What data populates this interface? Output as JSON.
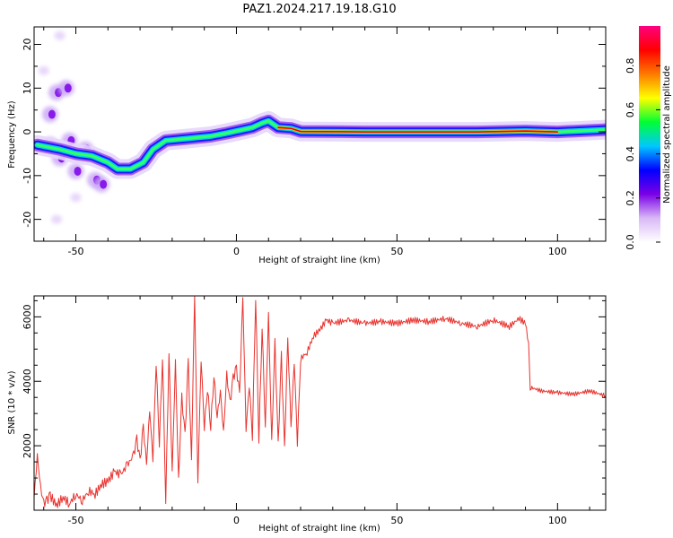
{
  "title": "PAZ1.2024.217.19.18.G10",
  "chart_data": [
    {
      "type": "heatmap",
      "xlabel": "Height of straight line (km)",
      "ylabel": "Frequency (Hz)",
      "xlim": [
        -63,
        115
      ],
      "ylim": [
        -25,
        24
      ],
      "xticks": [
        -50,
        0,
        50,
        100
      ],
      "yticks": [
        -20,
        -10,
        0,
        10,
        20
      ],
      "ridge": [
        {
          "x": -62,
          "y": -3
        },
        {
          "x": -55,
          "y": -4
        },
        {
          "x": -50,
          "y": -5
        },
        {
          "x": -45,
          "y": -5.5
        },
        {
          "x": -40,
          "y": -7
        },
        {
          "x": -37,
          "y": -8.5
        },
        {
          "x": -33,
          "y": -8.5
        },
        {
          "x": -29,
          "y": -7
        },
        {
          "x": -26,
          "y": -4
        },
        {
          "x": -22,
          "y": -2
        },
        {
          "x": -15,
          "y": -1.5
        },
        {
          "x": -8,
          "y": -1
        },
        {
          "x": -3,
          "y": -0.3
        },
        {
          "x": 2,
          "y": 0.5
        },
        {
          "x": 5,
          "y": 1
        },
        {
          "x": 8,
          "y": 2
        },
        {
          "x": 10,
          "y": 2.5
        },
        {
          "x": 13,
          "y": 1
        },
        {
          "x": 17,
          "y": 0.8
        },
        {
          "x": 20,
          "y": 0.1
        },
        {
          "x": 40,
          "y": 0
        },
        {
          "x": 75,
          "y": 0
        },
        {
          "x": 90,
          "y": 0.2
        },
        {
          "x": 100,
          "y": 0
        },
        {
          "x": 115,
          "y": 0.5
        }
      ],
      "scatter_blobs": [
        {
          "x": -58,
          "y": -3
        },
        {
          "x": -55,
          "y": -6
        },
        {
          "x": -52,
          "y": -2
        },
        {
          "x": -50,
          "y": -9
        },
        {
          "x": -47,
          "y": -4
        },
        {
          "x": -44,
          "y": -11
        },
        {
          "x": -42,
          "y": -12
        },
        {
          "x": -58,
          "y": 4
        },
        {
          "x": -56,
          "y": 9
        },
        {
          "x": -53,
          "y": 10
        },
        {
          "x": -60,
          "y": 14
        },
        {
          "x": -55,
          "y": 22
        },
        {
          "x": -56,
          "y": -20
        },
        {
          "x": -50,
          "y": -15
        }
      ]
    },
    {
      "type": "colorbar",
      "ylabel": "Normalized spectral amplitude",
      "ylim": [
        0,
        0.98
      ],
      "yticks": [
        0.0,
        0.2,
        0.4,
        0.6,
        0.8
      ],
      "tick_labels": [
        "0.0",
        "0.2",
        "0.4",
        "0.6",
        "0.8"
      ],
      "colors": [
        "#ffffff",
        "#d9b8f7",
        "#7a00e6",
        "#0000ff",
        "#00c8ff",
        "#00ff33",
        "#ffff00",
        "#ff7a00",
        "#ff0000",
        "#ff0080"
      ]
    },
    {
      "type": "line",
      "xlabel": "Height of straight line (km)",
      "ylabel": "SNR (10 * v/v)",
      "xlim": [
        -63,
        115
      ],
      "ylim": [
        0,
        6650
      ],
      "xticks": [
        -50,
        0,
        50,
        100
      ],
      "yticks": [
        2000,
        4000,
        6000
      ],
      "color": "#e8332e",
      "x": [
        -63,
        -62,
        -61,
        -60,
        -59,
        -58,
        -56,
        -54,
        -52,
        -50,
        -48,
        -46,
        -44,
        -42,
        -40,
        -38,
        -36,
        -34,
        -32,
        -31,
        -30,
        -29,
        -28,
        -27,
        -26,
        -25,
        -24,
        -23,
        -22,
        -21,
        -20,
        -19,
        -18,
        -17,
        -16,
        -15,
        -14,
        -13,
        -12,
        -11,
        -10,
        -9,
        -8,
        -7,
        -6,
        -5,
        -4,
        -3,
        -2,
        -1,
        0,
        1,
        2,
        3,
        4,
        5,
        6,
        7,
        8,
        9,
        10,
        11,
        12,
        13,
        14,
        15,
        16,
        17,
        18,
        19,
        20,
        22,
        24,
        26,
        28,
        30,
        35,
        40,
        45,
        50,
        55,
        60,
        65,
        70,
        75,
        80,
        85,
        88,
        90,
        91,
        91.5,
        92,
        95,
        100,
        105,
        110,
        115
      ],
      "y": [
        400,
        1700,
        700,
        200,
        300,
        450,
        150,
        400,
        200,
        500,
        300,
        600,
        500,
        800,
        900,
        1200,
        1100,
        1400,
        1700,
        2200,
        1500,
        2600,
        1400,
        3100,
        1600,
        4600,
        2100,
        4800,
        300,
        4900,
        1200,
        4600,
        900,
        3500,
        2300,
        4600,
        1500,
        6650,
        900,
        4700,
        2600,
        3800,
        2600,
        4200,
        2900,
        3700,
        2400,
        4200,
        3300,
        4100,
        4400,
        3600,
        6600,
        2500,
        3900,
        2300,
        6650,
        2200,
        5700,
        2600,
        6100,
        2100,
        5200,
        2000,
        4800,
        1900,
        5300,
        2600,
        4600,
        2100,
        4700,
        4900,
        5400,
        5600,
        5900,
        5800,
        5900,
        5800,
        5850,
        5800,
        5900,
        5850,
        5950,
        5800,
        5700,
        5900,
        5700,
        5950,
        5800,
        5200,
        3700,
        3800,
        3700,
        3650,
        3600,
        3700,
        3550
      ]
    }
  ]
}
